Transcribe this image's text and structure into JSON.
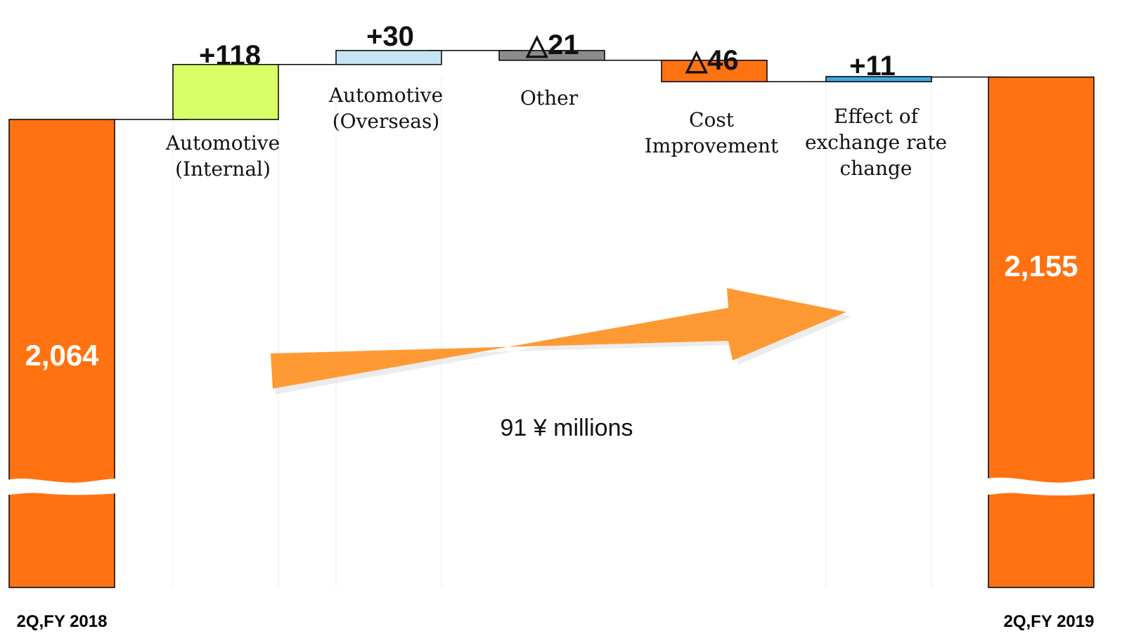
{
  "chart_data": {
    "type": "waterfall",
    "unit_label": "91 ¥ millions",
    "start": {
      "label": "2Q,FY 2018",
      "value": 2064,
      "value_label": "2,064"
    },
    "end": {
      "label": "2Q,FY 2019",
      "value": 2155,
      "value_label": "2,155"
    },
    "steps": [
      {
        "label_lines": [
          "Automotive",
          "(Internal)"
        ],
        "value": 118,
        "value_label": "+118",
        "color": "#d9ff66"
      },
      {
        "label_lines": [
          "Automotive",
          "(Overseas)"
        ],
        "value": 30,
        "value_label": "+30",
        "color": "#c5e5f2"
      },
      {
        "label_lines": [
          "Other"
        ],
        "value": -21,
        "value_label": "△21",
        "color": "#8c8c8c"
      },
      {
        "label_lines": [
          "Cost",
          "Improvement"
        ],
        "value": -46,
        "value_label": "△46",
        "color": "#ff7211"
      },
      {
        "label_lines": [
          "Effect of",
          "exchange rate",
          "change"
        ],
        "value": 11,
        "value_label": "+11",
        "color": "#3fa9e0"
      }
    ],
    "total_color": "#ff7211",
    "arrow_color": "#ff9933"
  }
}
